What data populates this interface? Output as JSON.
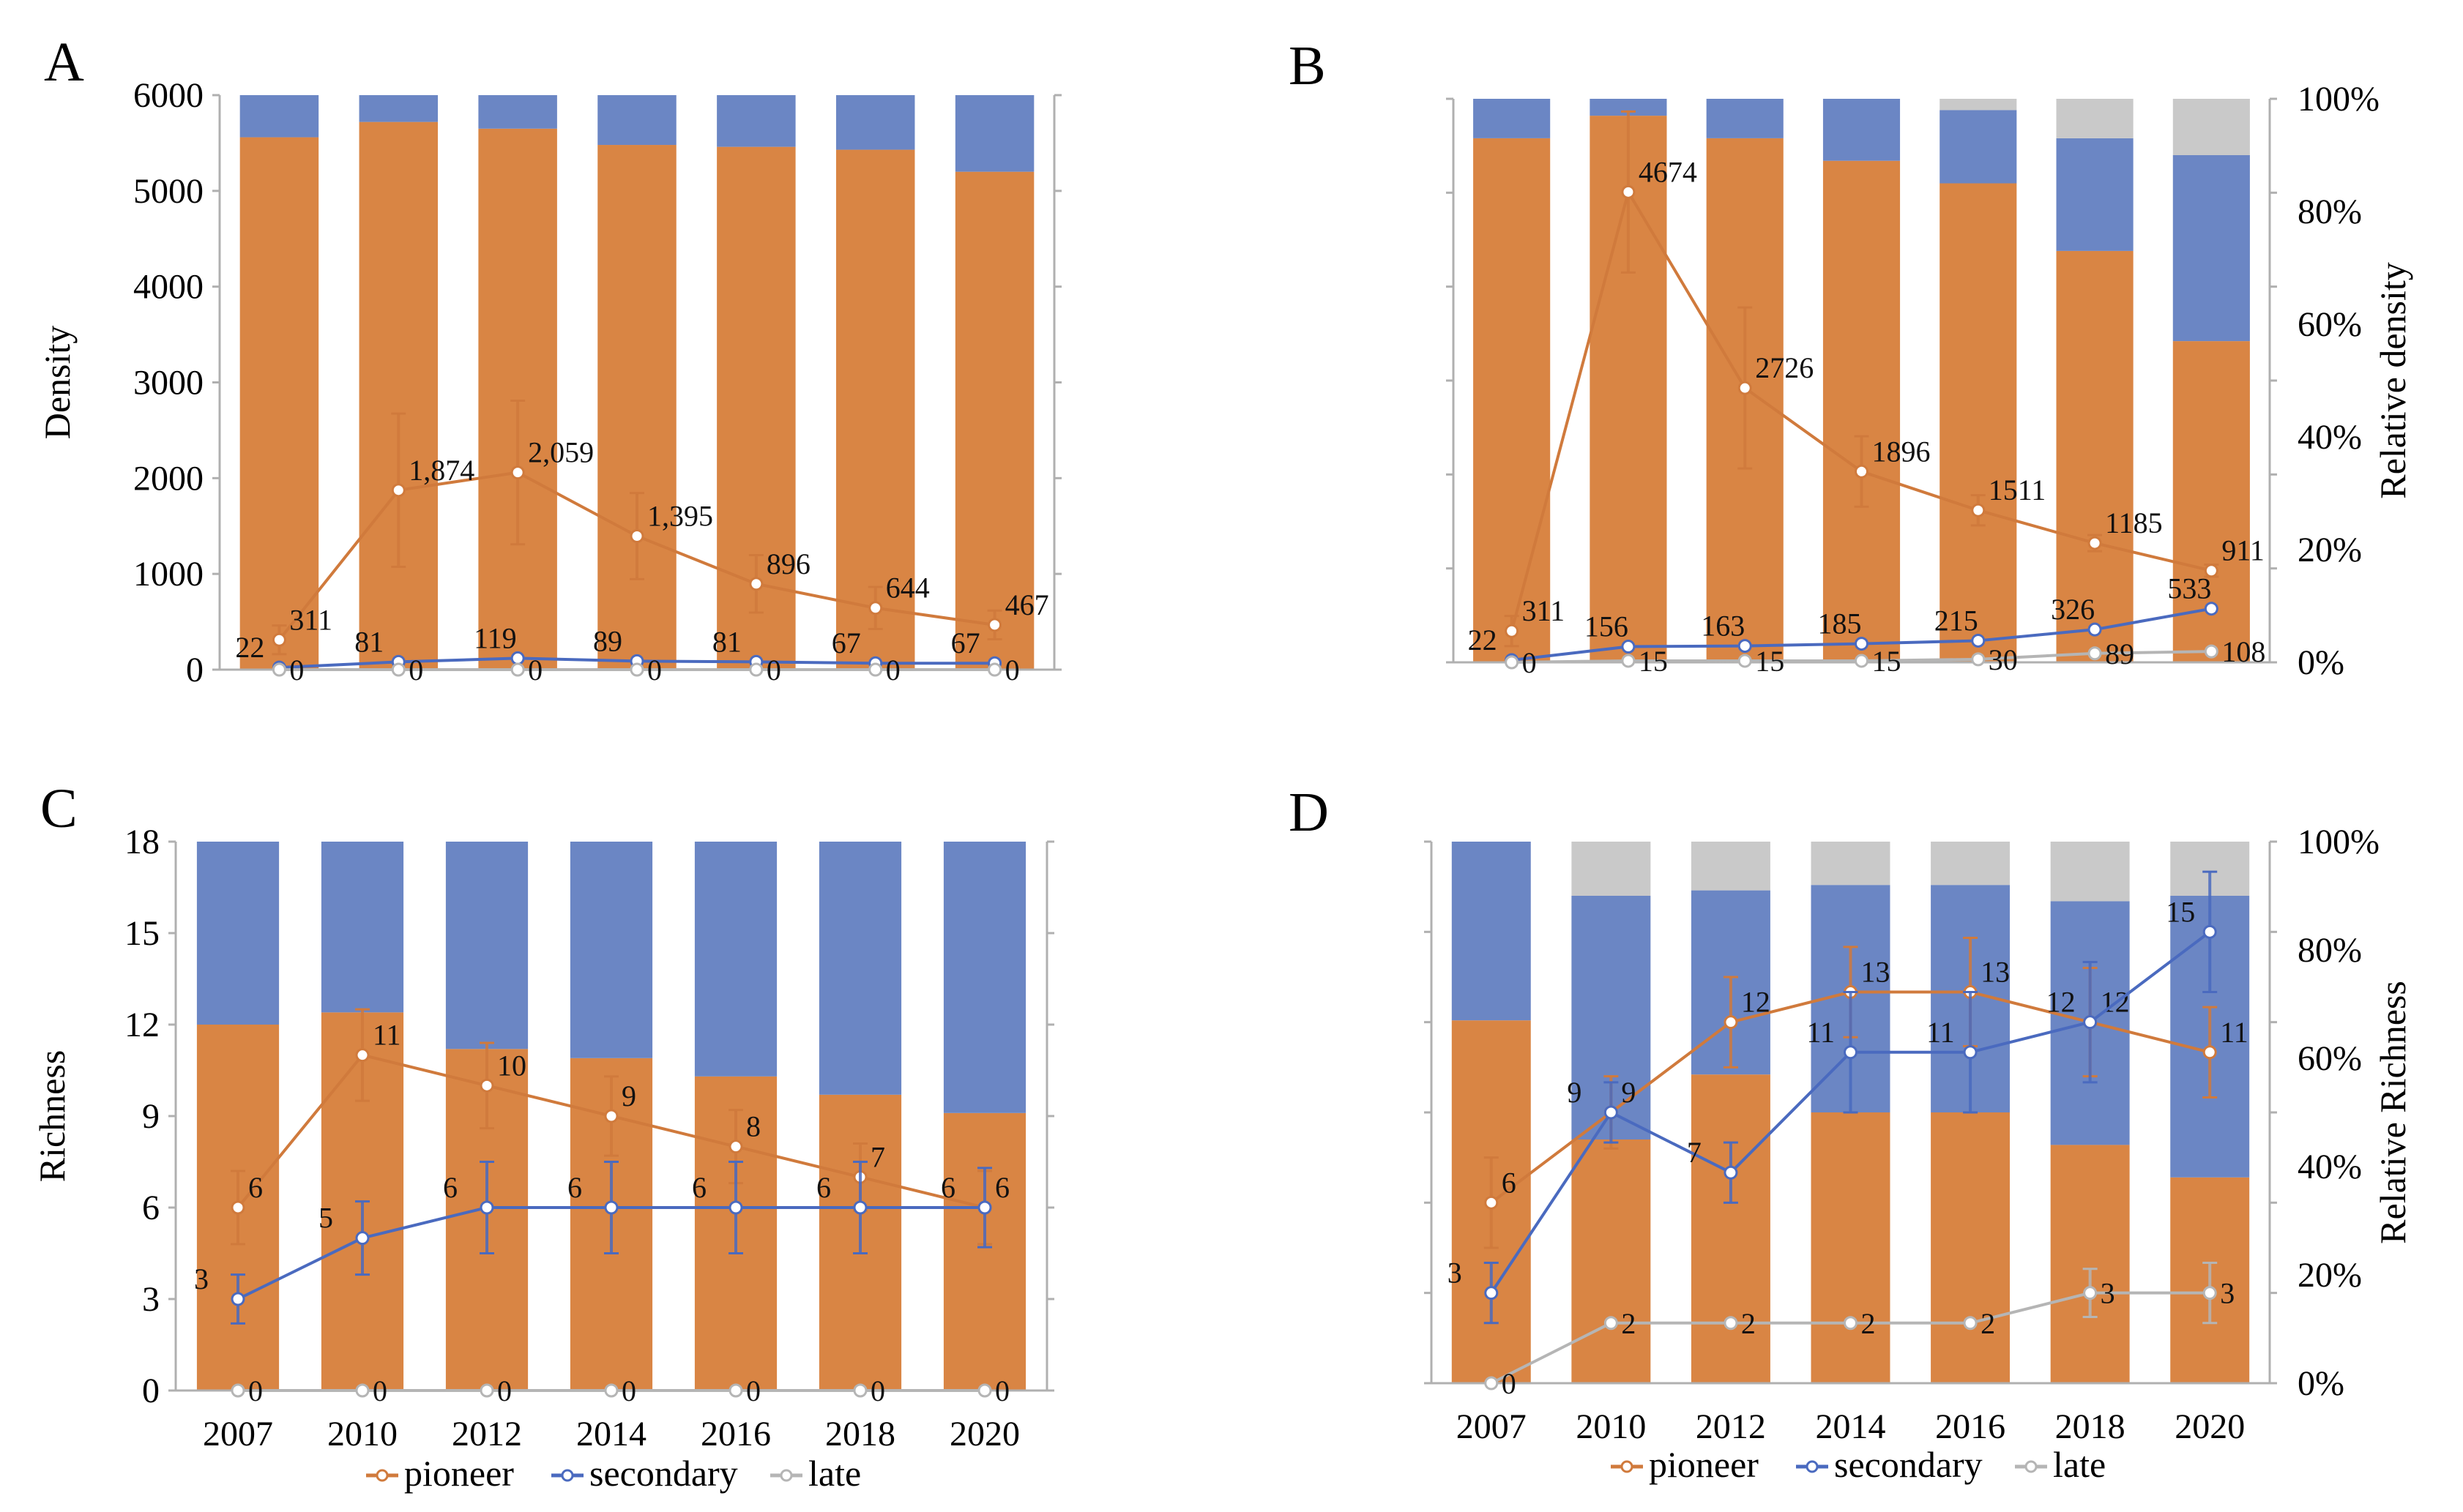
{
  "legend": {
    "series": [
      "pioneer",
      "secondary",
      "late"
    ]
  },
  "chart_data": [
    {
      "panel": "A",
      "type": "bar",
      "ylabel": "Density",
      "ylim": [
        0,
        6000
      ],
      "yticks": [
        "0",
        "1000",
        "2000",
        "3000",
        "4000",
        "5000",
        "6000"
      ],
      "categories": [
        "2007",
        "2010",
        "2012",
        "2014",
        "2016",
        "2018",
        "2020"
      ],
      "bar_axis": "left",
      "bar_stack": [
        {
          "name": "pioneer",
          "color": "#d98544",
          "values": [
            5560,
            5720,
            5650,
            5480,
            5460,
            5430,
            5200
          ]
        },
        {
          "name": "secondary",
          "color": "#6b86c4",
          "values": [
            440,
            280,
            350,
            520,
            540,
            570,
            800
          ]
        }
      ],
      "line_axis": "left",
      "lines": [
        {
          "name": "pioneer",
          "color": "#d07a3c",
          "values": [
            311,
            1874,
            2059,
            1395,
            896,
            644,
            467
          ],
          "labels": [
            "311",
            "1,874",
            "2,059",
            "1,395",
            "896",
            "644",
            "467"
          ],
          "errors": [
            150,
            800,
            750,
            450,
            300,
            220,
            150
          ]
        },
        {
          "name": "secondary",
          "color": "#4a6abf",
          "values": [
            22,
            81,
            119,
            89,
            81,
            67,
            67
          ],
          "labels": [
            "22",
            "81",
            "119",
            "89",
            "81",
            "67",
            "67"
          ],
          "errors": [
            0,
            0,
            0,
            0,
            0,
            0,
            0
          ]
        },
        {
          "name": "late",
          "color": "#b5b5b5",
          "values": [
            0,
            0,
            0,
            0,
            0,
            0,
            0
          ],
          "labels": [
            "0",
            "0",
            "0",
            "0",
            "0",
            "0",
            "0"
          ],
          "errors": [
            0,
            0,
            0,
            0,
            0,
            0,
            0
          ]
        }
      ]
    },
    {
      "panel": "B",
      "type": "bar",
      "ylabel": "Relative density",
      "right_ticks": [
        "0%",
        "20%",
        "40%",
        "60%",
        "80%",
        "100%"
      ],
      "line_ylim": [
        0,
        5600
      ],
      "categories": [
        "2007",
        "2010",
        "2012",
        "2014",
        "2016",
        "2018",
        "2020"
      ],
      "bar_axis": "right",
      "bar_stack": [
        {
          "name": "pioneer",
          "color": "#d98544",
          "values": [
            93,
            97,
            93,
            89,
            85,
            73,
            57
          ]
        },
        {
          "name": "secondary",
          "color": "#6b86c4",
          "values": [
            7,
            3,
            7,
            11,
            13,
            20,
            33
          ]
        },
        {
          "name": "late",
          "color": "#c9c9c9",
          "values": [
            0,
            0,
            0,
            0,
            2,
            7,
            10
          ]
        }
      ],
      "line_axis": "hidden",
      "lines": [
        {
          "name": "pioneer",
          "color": "#d07a3c",
          "values": [
            311,
            4674,
            2726,
            1896,
            1511,
            1185,
            911
          ],
          "labels": [
            "311",
            "4674",
            "2726",
            "1896",
            "1511",
            "1185",
            "911"
          ],
          "errors": [
            150,
            800,
            800,
            350,
            150,
            80,
            60
          ]
        },
        {
          "name": "secondary",
          "color": "#4a6abf",
          "values": [
            22,
            156,
            163,
            185,
            215,
            326,
            533
          ],
          "labels": [
            "22",
            "156",
            "163",
            "185",
            "215",
            "326",
            "533"
          ],
          "errors": [
            0,
            0,
            0,
            0,
            0,
            0,
            0
          ]
        },
        {
          "name": "late",
          "color": "#b5b5b5",
          "values": [
            0,
            15,
            15,
            15,
            30,
            89,
            108
          ],
          "labels": [
            "0",
            "15",
            "15",
            "15",
            "30",
            "89",
            "108"
          ],
          "errors": [
            0,
            0,
            0,
            0,
            0,
            0,
            0
          ]
        }
      ]
    },
    {
      "panel": "C",
      "type": "bar",
      "ylabel": "Richness",
      "ylim": [
        0,
        18
      ],
      "yticks": [
        "0",
        "3",
        "6",
        "9",
        "12",
        "15",
        "18"
      ],
      "categories": [
        "2007",
        "2010",
        "2012",
        "2014",
        "2016",
        "2018",
        "2020"
      ],
      "bar_axis": "left",
      "bar_stack": [
        {
          "name": "pioneer",
          "color": "#d98544",
          "values": [
            12,
            12.4,
            11.2,
            10.9,
            10.3,
            9.7,
            9.1
          ]
        },
        {
          "name": "secondary",
          "color": "#6b86c4",
          "values": [
            6,
            5.6,
            6.8,
            7.1,
            7.7,
            8.3,
            8.9
          ]
        }
      ],
      "line_axis": "left",
      "lines": [
        {
          "name": "pioneer",
          "color": "#d07a3c",
          "values": [
            6,
            11,
            10,
            9,
            8,
            7,
            6
          ],
          "labels": [
            "6",
            "11",
            "10",
            "9",
            "8",
            "7",
            "6"
          ],
          "errors": [
            1.2,
            1.5,
            1.4,
            1.3,
            1.2,
            1.1,
            1.2
          ]
        },
        {
          "name": "secondary",
          "color": "#4a6abf",
          "values": [
            3,
            5,
            6,
            6,
            6,
            6,
            6
          ],
          "labels": [
            "3",
            "5",
            "6",
            "6",
            "6",
            "6",
            "6"
          ],
          "errors": [
            0.8,
            1.2,
            1.5,
            1.5,
            1.5,
            1.5,
            1.3
          ]
        },
        {
          "name": "late",
          "color": "#b5b5b5",
          "values": [
            0,
            0,
            0,
            0,
            0,
            0,
            0
          ],
          "labels": [
            "0",
            "0",
            "0",
            "0",
            "0",
            "0",
            "0"
          ],
          "errors": [
            0,
            0,
            0,
            0,
            0,
            0,
            0
          ]
        }
      ]
    },
    {
      "panel": "D",
      "type": "bar",
      "ylabel": "Relative Richness",
      "right_ticks": [
        "0%",
        "20%",
        "40%",
        "60%",
        "80%",
        "100%"
      ],
      "line_ylim": [
        0,
        18
      ],
      "categories": [
        "2007",
        "2010",
        "2012",
        "2014",
        "2016",
        "2018",
        "2020"
      ],
      "bar_axis": "right",
      "bar_stack": [
        {
          "name": "pioneer",
          "color": "#d98544",
          "values": [
            67,
            45,
            57,
            50,
            50,
            44,
            38
          ]
        },
        {
          "name": "secondary",
          "color": "#6b86c4",
          "values": [
            33,
            45,
            34,
            42,
            42,
            45,
            52
          ]
        },
        {
          "name": "late",
          "color": "#c9c9c9",
          "values": [
            0,
            10,
            9,
            8,
            8,
            11,
            10
          ]
        }
      ],
      "line_axis": "hidden",
      "lines": [
        {
          "name": "pioneer",
          "color": "#d07a3c",
          "values": [
            6,
            9,
            12,
            13,
            13,
            12,
            11
          ],
          "labels": [
            "6",
            "9",
            "12",
            "13",
            "13",
            "12",
            "11"
          ],
          "errors": [
            1.5,
            1.2,
            1.5,
            1.5,
            1.8,
            1.8,
            1.5
          ]
        },
        {
          "name": "secondary",
          "color": "#4a6abf",
          "values": [
            3,
            9,
            7,
            11,
            11,
            12,
            15
          ],
          "labels": [
            "3",
            "9",
            "7",
            "11",
            "11",
            "12",
            "15"
          ],
          "errors": [
            1.0,
            1.0,
            1.0,
            2.0,
            2.0,
            2.0,
            2.0
          ]
        },
        {
          "name": "late",
          "color": "#b5b5b5",
          "values": [
            0,
            2,
            2,
            2,
            2,
            3,
            3
          ],
          "labels": [
            "0",
            "2",
            "2",
            "2",
            "2",
            "3",
            "3"
          ],
          "errors": [
            0,
            0,
            0,
            0,
            0,
            0.8,
            1.0
          ]
        }
      ]
    }
  ]
}
